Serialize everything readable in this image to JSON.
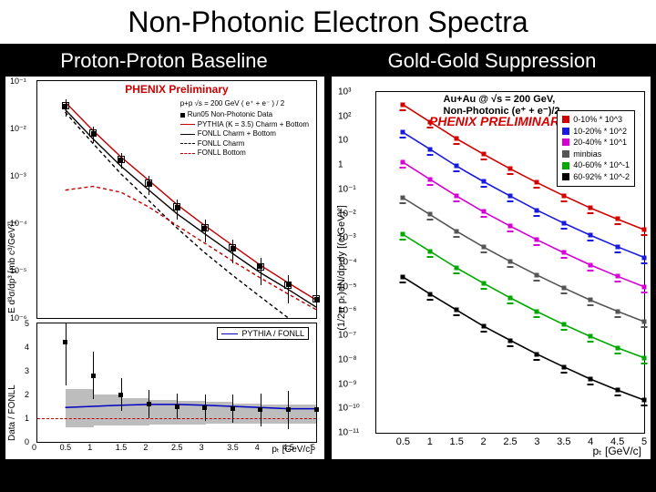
{
  "slide": {
    "bg": "#000000",
    "title": "Non-Photonic Electron Spectra",
    "subtitle_left": "Proton-Proton Baseline",
    "subtitle_right": "Gold-Gold Suppression"
  },
  "left_chart": {
    "top": {
      "y_label": "E d³σ/dp³ [mb c³/GeV²]",
      "prelim_label": "PHENIX Preliminary",
      "legend_title": "p+p √s = 200 GeV ( e⁺ + e⁻ ) / 2",
      "legend": [
        {
          "label": "Run05 Non-Photonic Data",
          "style": "marker",
          "color": "#000000"
        },
        {
          "label": "PYTHIA (K = 3.5) Charm + Bottom",
          "style": "solid",
          "color": "#c00000"
        },
        {
          "label": "FONLL Charm + Bottom",
          "style": "solid",
          "color": "#000000"
        },
        {
          "label": "FONLL Charm",
          "style": "dash",
          "color": "#000000"
        },
        {
          "label": "FONLL Bottom",
          "style": "dash",
          "color": "#c00000"
        }
      ],
      "x": [
        0.5,
        1.0,
        1.5,
        2.0,
        2.5,
        3.0,
        3.5,
        4.0,
        4.5,
        5.0
      ],
      "data_y": [
        0.03,
        0.008,
        0.0022,
        0.0007,
        0.00022,
        8e-05,
        3e-05,
        1.2e-05,
        5e-06,
        2.5e-06
      ],
      "data_err": [
        0.012,
        0.003,
        0.0008,
        0.0003,
        0.0001,
        4e-05,
        1.6e-05,
        7e-06,
        3e-06,
        1.8e-06
      ],
      "fonll_total": [
        0.025,
        0.006,
        0.0016,
        0.0005,
        0.00016,
        6e-05,
        2.3e-05,
        9e-06,
        4e-06,
        1.7e-06
      ],
      "pythia": [
        0.036,
        0.009,
        0.0025,
        0.0008,
        0.00025,
        9e-05,
        3.4e-05,
        1.3e-05,
        5.5e-06,
        2.4e-06
      ],
      "fonll_charm": [
        0.022,
        0.0048,
        0.0011,
        0.0003,
        8e-05,
        2.4e-05,
        8e-06,
        2.8e-06,
        1e-06,
        4e-07
      ],
      "fonll_bottom": [
        0.0005,
        0.0006,
        0.00045,
        0.00022,
        9e-05,
        3.8e-05,
        1.6e-05,
        7e-06,
        3.2e-06,
        1.5e-06
      ],
      "ylim": [
        1e-06,
        0.1
      ],
      "yticks": [
        0.1,
        0.01,
        0.001,
        0.0001,
        1e-05,
        1e-06
      ],
      "colors": {
        "pythia": "#c00000",
        "fonll": "#000000",
        "charm": "#000000",
        "bottom": "#c00000"
      }
    },
    "bottom": {
      "y_label": "Data / FONLL",
      "legend_label": "PYTHIA / FONLL",
      "legend_color": "#0000c0",
      "x": [
        0.5,
        1.0,
        1.5,
        2.0,
        2.5,
        3.0,
        3.5,
        4.0,
        4.5,
        5.0
      ],
      "ratio": [
        4.2,
        2.8,
        2.0,
        1.6,
        1.5,
        1.45,
        1.4,
        1.35,
        1.35,
        1.35
      ],
      "ratio_err": [
        1.8,
        1.0,
        0.7,
        0.6,
        0.55,
        0.55,
        0.6,
        0.7,
        0.8,
        0.9
      ],
      "pythia_ratio": [
        1.45,
        1.5,
        1.55,
        1.58,
        1.58,
        1.55,
        1.5,
        1.45,
        1.4,
        1.4
      ],
      "band_lo": [
        0.6,
        0.65,
        0.7,
        0.72,
        0.74,
        0.75,
        0.76,
        0.77,
        0.78,
        0.78
      ],
      "band_hi": [
        2.4,
        2.1,
        1.9,
        1.8,
        1.75,
        1.7,
        1.65,
        1.6,
        1.58,
        1.55
      ],
      "unity_color": "#c00000",
      "ylim": [
        0,
        5
      ],
      "yticks": [
        0,
        1,
        2,
        3,
        4,
        5
      ],
      "x_label": "pₜ [GeV/c]",
      "xticks": [
        0,
        0.5,
        1,
        1.5,
        2,
        2.5,
        3,
        3.5,
        4,
        4.5,
        5
      ]
    },
    "xlim": [
      0,
      5
    ]
  },
  "right_chart": {
    "title": "Au+Au @ √s = 200 GeV, Non-Photonic (e⁺ + e⁻)/2",
    "prelim": "PHENIX PRELIMINARY",
    "y_label": "(1/2π pₜ)dN/dpₜdy [(c/GeV)²]",
    "x_label": "pₜ [GeV/c]",
    "xlim": [
      0,
      5
    ],
    "ylim": [
      1e-11,
      1000.0
    ],
    "xticks": [
      0.5,
      1,
      1.5,
      2,
      2.5,
      3,
      3.5,
      4,
      4.5,
      5
    ],
    "yticks": [
      1000.0,
      100.0,
      10,
      1,
      0.1,
      0.01,
      0.001,
      0.0001,
      1e-05,
      1e-06,
      1e-07,
      1e-08,
      1e-09,
      1e-10,
      1e-11
    ],
    "ytick_labels": [
      "10³",
      "10²",
      "10",
      "1",
      "10⁻¹",
      "10⁻²",
      "10⁻³",
      "10⁻⁴",
      "10⁻⁵",
      "10⁻⁶",
      "10⁻⁷",
      "10⁻⁸",
      "10⁻⁹",
      "10⁻¹⁰",
      "10⁻¹¹"
    ],
    "series": [
      {
        "name": "0-10%",
        "label": "0-10% * 10^3",
        "color": "#d40000",
        "y": [
          300.0,
          60.0,
          12.0,
          2.8,
          0.7,
          0.19,
          0.055,
          0.017,
          0.006,
          0.0022
        ]
      },
      {
        "name": "10-20%",
        "label": "10-20% * 10^2",
        "color": "#1a1adf",
        "y": [
          22.0,
          4.5,
          0.9,
          0.21,
          0.053,
          0.014,
          0.0041,
          0.0013,
          0.00044,
          0.00016
        ]
      },
      {
        "name": "20-40%",
        "label": "20-40% * 10^1",
        "color": "#d600d6",
        "y": [
          1.3,
          0.26,
          0.053,
          0.012,
          0.0031,
          0.00085,
          0.00025,
          7.8e-05,
          2.7e-05,
          1e-05
        ]
      },
      {
        "name": "minbias",
        "label": "minbias",
        "color": "#555555",
        "y": [
          0.045,
          0.0093,
          0.0019,
          0.00043,
          0.00011,
          3e-05,
          8.9e-06,
          2.8e-06,
          9.8e-07,
          3.7e-07
        ]
      },
      {
        "name": "40-60%",
        "label": "40-60% * 10^-1",
        "color": "#00a800",
        "y": [
          0.0014,
          0.00029,
          5.9e-05,
          1.4e-05,
          3.5e-06,
          9.5e-07,
          2.8e-07,
          9e-08,
          3.1e-08,
          1.2e-08
        ]
      },
      {
        "name": "60-92%",
        "label": "60-92% * 10^-2",
        "color": "#000000",
        "y": [
          2.5e-05,
          5.1e-06,
          1.1e-06,
          2.4e-07,
          6.3e-08,
          1.7e-08,
          5.1e-09,
          1.6e-09,
          5.7e-10,
          2.2e-10
        ]
      }
    ],
    "series_x": [
      0.5,
      1.0,
      1.5,
      2.0,
      2.5,
      3.0,
      3.5,
      4.0,
      4.5,
      5.0
    ]
  }
}
